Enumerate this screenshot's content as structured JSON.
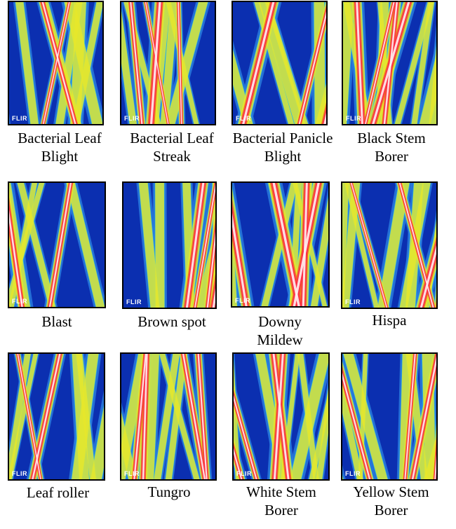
{
  "watermark": "FLIR",
  "palette": {
    "cold": "#0b2fb0",
    "cool": "#2b7fe0",
    "mid": "#2ec4e6",
    "warm": "#e8e82a",
    "hot": "#f05a2a",
    "hottest": "#ff2a4a",
    "white": "#fff0f0"
  },
  "images": [
    {
      "caption": "Bacterial Leaf Blight"
    },
    {
      "caption": "Bacterial Leaf Streak"
    },
    {
      "caption": "Bacterial Panicle Blight"
    },
    {
      "caption": "Black Stem Borer"
    },
    {
      "caption": "Blast"
    },
    {
      "caption": "Brown spot"
    },
    {
      "caption": "Downy Mildew"
    },
    {
      "caption": "Hispa"
    },
    {
      "caption": "Leaf roller"
    },
    {
      "caption": "Tungro"
    },
    {
      "caption": "White Stem Borer"
    },
    {
      "caption": "Yellow Stem Borer"
    }
  ]
}
